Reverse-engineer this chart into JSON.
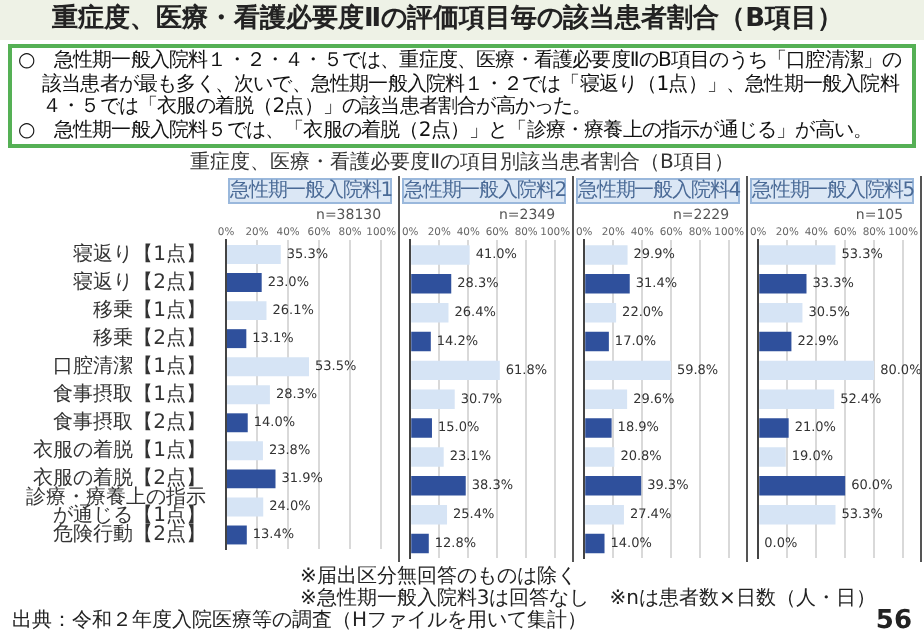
{
  "chart_data": [
    {
      "type": "other",
      "title": "重症度、医療・看護必要度Ⅱの評価項目毎の該当患者割合（B項目）",
      "subtitle": "重症度、医療・看護必要度Ⅱの項目別該当患者割合（B項目）",
      "annotations": [
        "○　急性期一般入院料１・２・４・５では、重症度、医療・看護必要度ⅡのB項目のうち「口腔清潔」の該当患者が最も多く、次いで、急性期一般入院料１・２では「寝返り（1点）」、急性期一般入院料４・５では「衣服の着脱（2点）」の該当患者割合が高かった。",
        "○　急性期一般入院料５では、「衣服の着脱（2点）」と「診療・療養上の指示が通じる」が高い。"
      ]
    },
    {
      "type": "bar",
      "orientation": "horizontal",
      "title": "急性期一般入院料1",
      "annotations": [
        "n=38130"
      ],
      "categories": [
        "寝返り【1点】",
        "寝返り【2点】",
        "移乗【1点】",
        "移乗【2点】",
        "口腔清潔【1点】",
        "食事摂取【1点】",
        "食事摂取【2点】",
        "衣服の着脱【1点】",
        "衣服の着脱【2点】",
        "診療・療養上の指示が通じる【1点】",
        "危険行動【2点】"
      ],
      "values": [
        35.3,
        23.0,
        26.1,
        13.1,
        53.5,
        28.3,
        14.0,
        23.8,
        31.9,
        24.0,
        13.4
      ],
      "value_labels": [
        "35.3%",
        "23.0%",
        "26.1%",
        "13.1%",
        "53.5%",
        "28.3%",
        "14.0%",
        "23.8%",
        "31.9%",
        "24.0%",
        "13.4%"
      ],
      "colors": [
        "#d6e4f5",
        "#2f509c",
        "#d6e4f5",
        "#2f509c",
        "#d6e4f5",
        "#d6e4f5",
        "#2f509c",
        "#d6e4f5",
        "#2f509c",
        "#d6e4f5",
        "#2f509c"
      ],
      "xlim": [
        0,
        100
      ],
      "xticks": [
        {
          "value": 0,
          "label": "0%"
        },
        {
          "value": 20,
          "label": "20%"
        },
        {
          "value": 40,
          "label": "40%"
        },
        {
          "value": 60,
          "label": "60%"
        },
        {
          "value": 80,
          "label": "80%"
        },
        {
          "value": 100,
          "label": "100%"
        }
      ],
      "grid": "x"
    },
    {
      "type": "bar",
      "orientation": "horizontal",
      "title": "急性期一般入院料2",
      "annotations": [
        "n=2349"
      ],
      "categories": [
        "寝返り【1点】",
        "寝返り【2点】",
        "移乗【1点】",
        "移乗【2点】",
        "口腔清潔【1点】",
        "食事摂取【1点】",
        "食事摂取【2点】",
        "衣服の着脱【1点】",
        "衣服の着脱【2点】",
        "診療・療養上の指示が通じる【1点】",
        "危険行動【2点】"
      ],
      "values": [
        41.0,
        28.3,
        26.4,
        14.2,
        61.8,
        30.7,
        15.0,
        23.1,
        38.3,
        25.4,
        12.8
      ],
      "value_labels": [
        "41.0%",
        "28.3%",
        "26.4%",
        "14.2%",
        "61.8%",
        "30.7%",
        "15.0%",
        "23.1%",
        "38.3%",
        "25.4%",
        "12.8%"
      ],
      "colors": [
        "#d6e4f5",
        "#2f509c",
        "#d6e4f5",
        "#2f509c",
        "#d6e4f5",
        "#d6e4f5",
        "#2f509c",
        "#d6e4f5",
        "#2f509c",
        "#d6e4f5",
        "#2f509c"
      ],
      "xlim": [
        0,
        100
      ],
      "xticks": [
        {
          "value": 0,
          "label": "0%"
        },
        {
          "value": 20,
          "label": "20%"
        },
        {
          "value": 40,
          "label": "40%"
        },
        {
          "value": 60,
          "label": "60%"
        },
        {
          "value": 80,
          "label": "80%"
        },
        {
          "value": 100,
          "label": "100%"
        }
      ],
      "grid": "x",
      "tick_labels": "x"
    },
    {
      "type": "bar",
      "orientation": "horizontal",
      "title": "急性期一般入院料4",
      "annotations": [
        "n=2229"
      ],
      "categories": [
        "寝返り【1点】",
        "寝返り【2点】",
        "移乗【1点】",
        "移乗【2点】",
        "口腔清潔【1点】",
        "食事摂取【1点】",
        "食事摂取【2点】",
        "衣服の着脱【1点】",
        "衣服の着脱【2点】",
        "診療・療養上の指示が通じる【1点】",
        "危険行動【2点】"
      ],
      "values": [
        29.9,
        31.4,
        22.0,
        17.0,
        59.8,
        29.6,
        18.9,
        20.8,
        39.3,
        27.4,
        14.0
      ],
      "value_labels": [
        "29.9%",
        "31.4%",
        "22.0%",
        "17.0%",
        "59.8%",
        "29.6%",
        "18.9%",
        "20.8%",
        "39.3%",
        "27.4%",
        "14.0%"
      ],
      "colors": [
        "#d6e4f5",
        "#2f509c",
        "#d6e4f5",
        "#2f509c",
        "#d6e4f5",
        "#d6e4f5",
        "#2f509c",
        "#d6e4f5",
        "#2f509c",
        "#d6e4f5",
        "#2f509c"
      ],
      "xlim": [
        0,
        100
      ],
      "xticks": [
        {
          "value": 0,
          "label": "0%"
        },
        {
          "value": 20,
          "label": "20%"
        },
        {
          "value": 40,
          "label": "40%"
        },
        {
          "value": 60,
          "label": "60%"
        },
        {
          "value": 80,
          "label": "80%"
        },
        {
          "value": 100,
          "label": "100%"
        }
      ],
      "grid": "x",
      "tick_labels": "x"
    },
    {
      "type": "bar",
      "orientation": "horizontal",
      "title": "急性期一般入院料5",
      "annotations": [
        "n=105"
      ],
      "categories": [
        "寝返り【1点】",
        "寝返り【2点】",
        "移乗【1点】",
        "移乗【2点】",
        "口腔清潔【1点】",
        "食事摂取【1点】",
        "食事摂取【2点】",
        "衣服の着脱【1点】",
        "衣服の着脱【2点】",
        "診療・療養上の指示が通じる【1点】",
        "危険行動【2点】"
      ],
      "values": [
        53.3,
        33.3,
        30.5,
        22.9,
        80.0,
        52.4,
        21.0,
        19.0,
        60.0,
        53.3,
        0.0
      ],
      "value_labels": [
        "53.3%",
        "33.3%",
        "30.5%",
        "22.9%",
        "80.0%",
        "52.4%",
        "21.0%",
        "19.0%",
        "60.0%",
        "53.3%",
        "0.0%"
      ],
      "colors": [
        "#d6e4f5",
        "#2f509c",
        "#d6e4f5",
        "#2f509c",
        "#d6e4f5",
        "#d6e4f5",
        "#2f509c",
        "#d6e4f5",
        "#2f509c",
        "#d6e4f5",
        "#2f509c"
      ],
      "xlim": [
        0,
        100
      ],
      "xticks": [
        {
          "value": 0,
          "label": "0%"
        },
        {
          "value": 20,
          "label": "20%"
        },
        {
          "value": 40,
          "label": "40%"
        },
        {
          "value": 60,
          "label": "60%"
        },
        {
          "value": 80,
          "label": "80%"
        },
        {
          "value": 100,
          "label": "100%"
        }
      ],
      "grid": "x",
      "tick_labels": "x"
    },
    {
      "type": "other",
      "annotations": [
        "※届出区分無回答のものは除く",
        "※急性期一般入院料3は回答なし　※nは患者数×日数（人・日）",
        "出典：令和２年度入院医療等の調査（Hファイルを用いて集計）",
        "56"
      ]
    }
  ]
}
